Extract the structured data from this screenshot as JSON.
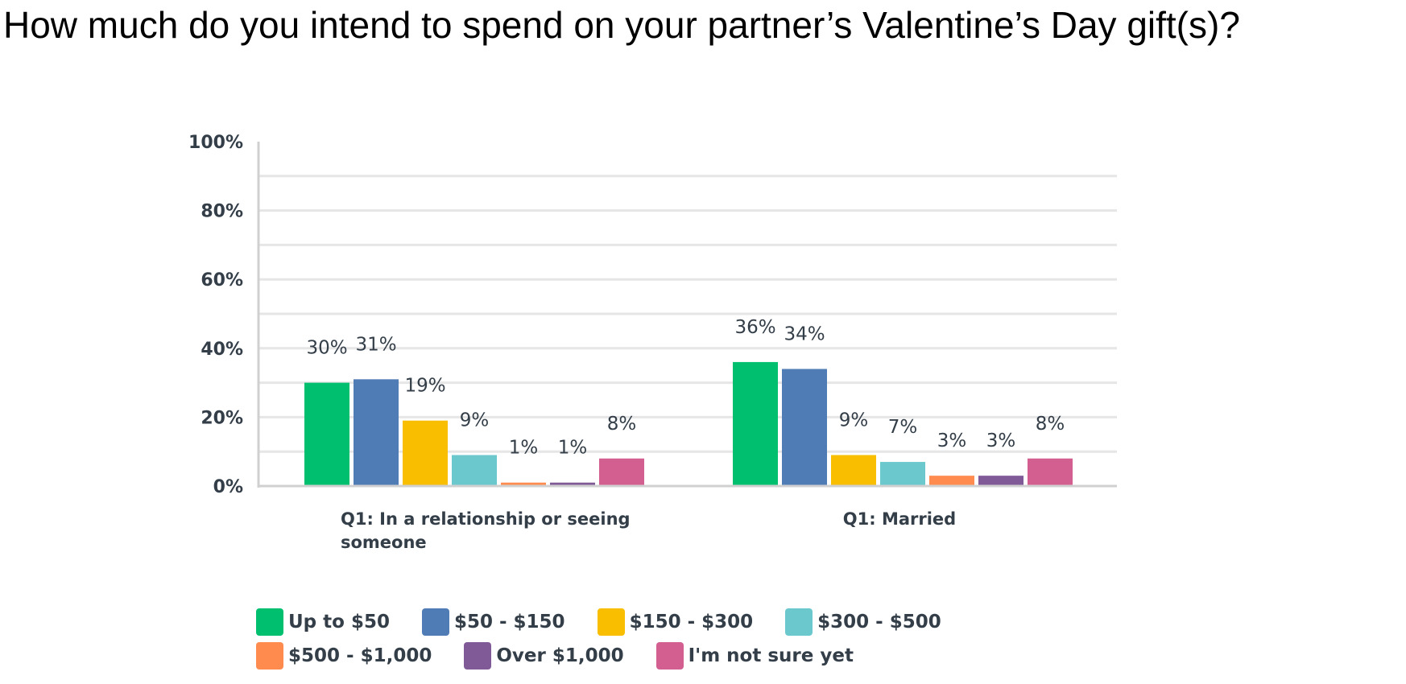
{
  "title": "How much do you intend to spend on your partner’s Valentine’s Day gift(s)?",
  "chart_data": {
    "type": "bar",
    "title": "How much do you intend to spend on your partner’s Valentine’s Day gift(s)?",
    "categories": [
      "Q1: In a relationship or seeing someone",
      "Q1: Married"
    ],
    "series": [
      {
        "name": "Up to $50",
        "values": [
          30,
          36
        ],
        "labels": [
          "30%",
          "36%"
        ],
        "color": "#00bf6f"
      },
      {
        "name": "$50 - $150",
        "values": [
          31,
          34
        ],
        "labels": [
          "31%",
          "34%"
        ],
        "color": "#507cb6"
      },
      {
        "name": "$150 - $300",
        "values": [
          19,
          9
        ],
        "labels": [
          "19%",
          "9%"
        ],
        "color": "#f9be00"
      },
      {
        "name": "$300 - $500",
        "values": [
          9,
          7
        ],
        "labels": [
          "9%",
          "7%"
        ],
        "color": "#6bc8cd"
      },
      {
        "name": "$500 - $1,000",
        "values": [
          1,
          3
        ],
        "labels": [
          "1%",
          "3%"
        ],
        "color": "#ff8b4f"
      },
      {
        "name": "Over $1,000",
        "values": [
          1,
          3
        ],
        "labels": [
          "1%",
          "3%"
        ],
        "color": "#7f5a97"
      },
      {
        "name": "I'm not sure yet",
        "values": [
          8,
          8
        ],
        "labels": [
          "8%",
          "8%"
        ],
        "color": "#d25f90"
      }
    ],
    "ylim": [
      0,
      100
    ],
    "yticks": [
      "100%",
      "80%",
      "60%",
      "40%",
      "20%",
      "0%"
    ],
    "ytick_values": [
      100,
      80,
      60,
      40,
      20,
      0
    ],
    "grid": true,
    "legend": "bottom"
  }
}
